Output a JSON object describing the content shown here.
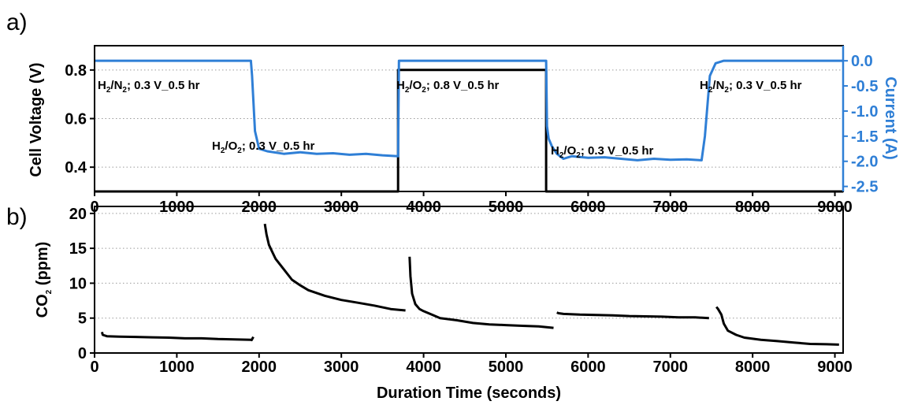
{
  "chart_data": [
    {
      "panel": "a)",
      "type": "line",
      "xlabel": "",
      "ylabel": "Cell Voltage (V)",
      "y2label": "Current (A)",
      "xlim": [
        0,
        9100
      ],
      "ylim": [
        0.3,
        0.9
      ],
      "y2lim": [
        -2.6,
        0.3
      ],
      "xticks": [
        "0",
        "1000",
        "2000",
        "3000",
        "4000",
        "5000",
        "6000",
        "7000",
        "8000",
        "9000"
      ],
      "yticks": [
        "0.4",
        "0.6",
        "0.8"
      ],
      "y2ticks": [
        "0.0",
        "-0.5",
        "-1.0",
        "-1.5",
        "-2.0",
        "-2.5"
      ],
      "grid": "horizontal dotted",
      "colors": {
        "voltage": "#000000",
        "current": "#2f7fd6"
      },
      "series": [
        {
          "axis": "left",
          "x": [
            0,
            3690,
            3690,
            5490,
            5490,
            9100
          ],
          "y": [
            0.3,
            0.3,
            0.8,
            0.8,
            0.3,
            0.3
          ]
        },
        {
          "axis": "right",
          "x": [
            0,
            1900,
            1915,
            1950,
            2000,
            2100,
            2300,
            2500,
            2700,
            2900,
            3100,
            3300,
            3500,
            3690,
            3700,
            3750,
            5490,
            5500,
            5520,
            5560,
            5620,
            5700,
            5800,
            6000,
            6200,
            6400,
            6600,
            6800,
            7000,
            7200,
            7380,
            7420,
            7480,
            7550,
            7650,
            9100
          ],
          "y": [
            0.0,
            0.0,
            -0.3,
            -1.4,
            -1.75,
            -1.8,
            -1.85,
            -1.82,
            -1.85,
            -1.84,
            -1.87,
            -1.85,
            -1.88,
            -1.9,
            0.0,
            0.0,
            0.0,
            -1.3,
            -1.55,
            -1.7,
            -1.85,
            -1.95,
            -1.9,
            -1.93,
            -1.92,
            -1.95,
            -1.98,
            -1.95,
            -1.97,
            -1.96,
            -1.98,
            -1.5,
            -0.3,
            -0.05,
            0.0,
            0.0
          ]
        }
      ],
      "annotations": [
        {
          "parts": [
            "H",
            "2",
            "/N",
            "2",
            "; 0.3 V_0.5 hr"
          ]
        },
        {
          "parts": [
            "H",
            "2",
            "/O",
            "2",
            "; 0.3 V_0.5 hr"
          ]
        },
        {
          "parts": [
            "H",
            "2",
            "/O",
            "2",
            "; 0.8 V_0.5 hr"
          ]
        },
        {
          "parts": [
            "H",
            "2",
            "/O",
            "2",
            "; 0.3 V_0.5 hr"
          ]
        },
        {
          "parts": [
            "H",
            "2",
            "/N",
            "2",
            "; 0.3 V_0.5 hr"
          ]
        }
      ]
    },
    {
      "panel": "b)",
      "type": "line",
      "xlabel": "Duration Time (seconds)",
      "ylabel_parts": [
        "CO",
        "2",
        " (ppm)"
      ],
      "xlim": [
        0,
        9100
      ],
      "ylim": [
        0,
        21
      ],
      "xticks": [
        "0",
        "1000",
        "2000",
        "3000",
        "4000",
        "5000",
        "6000",
        "7000",
        "8000",
        "9000"
      ],
      "yticks": [
        "0",
        "5",
        "10",
        "15",
        "20"
      ],
      "grid": "horizontal dotted",
      "series": [
        {
          "x": [
            90,
            100,
            150,
            300,
            500,
            700,
            900,
            1100,
            1300,
            1500,
            1700,
            1900,
            1910,
            1930
          ],
          "y": [
            3.0,
            2.6,
            2.4,
            2.35,
            2.3,
            2.25,
            2.2,
            2.1,
            2.1,
            2.0,
            1.95,
            1.9,
            1.85,
            2.3
          ]
        },
        {
          "x": [
            2070,
            2090,
            2120,
            2160,
            2200,
            2300,
            2400,
            2500,
            2600,
            2800,
            3000,
            3200,
            3400,
            3600,
            3780
          ],
          "y": [
            18.5,
            17.0,
            15.5,
            14.5,
            13.5,
            12.0,
            10.5,
            9.7,
            9.0,
            8.2,
            7.6,
            7.2,
            6.8,
            6.3,
            6.1
          ]
        },
        {
          "x": [
            3830,
            3840,
            3860,
            3900,
            3950,
            4000,
            4100,
            4200,
            4400,
            4600,
            4800,
            5000,
            5200,
            5400,
            5580
          ],
          "y": [
            13.8,
            11.0,
            8.5,
            7.0,
            6.3,
            6.0,
            5.5,
            5.0,
            4.7,
            4.3,
            4.1,
            4.0,
            3.9,
            3.8,
            3.6
          ]
        },
        {
          "x": [
            5620,
            5640,
            5700,
            5900,
            6100,
            6300,
            6500,
            6700,
            6900,
            7100,
            7300,
            7470
          ],
          "y": [
            5.8,
            5.7,
            5.6,
            5.5,
            5.45,
            5.4,
            5.3,
            5.25,
            5.2,
            5.1,
            5.1,
            5.0
          ]
        },
        {
          "x": [
            7560,
            7580,
            7620,
            7650,
            7700,
            7800,
            7900,
            8100,
            8300,
            8500,
            8700,
            8900,
            9050
          ],
          "y": [
            6.6,
            6.3,
            5.5,
            4.2,
            3.2,
            2.6,
            2.2,
            1.9,
            1.7,
            1.5,
            1.3,
            1.25,
            1.2
          ]
        }
      ]
    }
  ]
}
